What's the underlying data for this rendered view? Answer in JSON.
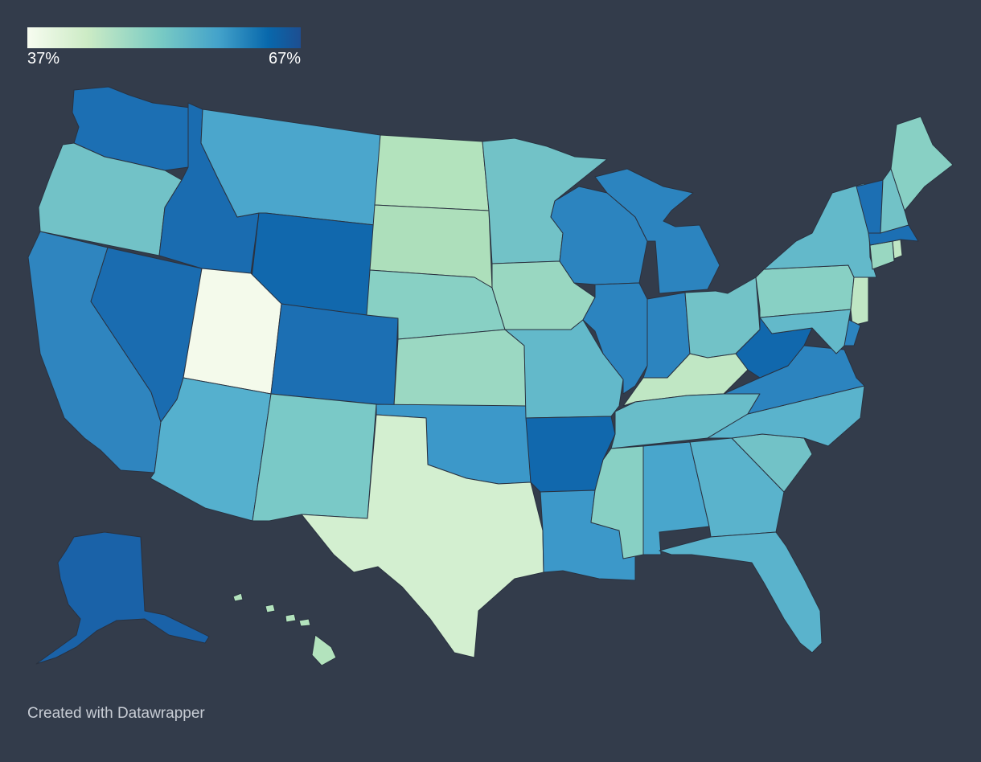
{
  "legend": {
    "min_label": "37%",
    "max_label": "67%",
    "min_value": 37,
    "max_value": 67,
    "colors": [
      "#f7fcf0",
      "#ccebc5",
      "#7bccc4",
      "#43a2ca",
      "#0868ac",
      "#1d4e91"
    ]
  },
  "credit": "Created with Datawrapper",
  "background_color": "#333c4b",
  "states": [
    {
      "id": "WA",
      "color": "#1c6fb3"
    },
    {
      "id": "OR",
      "color": "#72c2c7"
    },
    {
      "id": "CA",
      "color": "#2f85bf"
    },
    {
      "id": "NV",
      "color": "#1a6cb0"
    },
    {
      "id": "ID",
      "color": "#1a6cb0"
    },
    {
      "id": "MT",
      "color": "#4ba6cc"
    },
    {
      "id": "WY",
      "color": "#1168ad"
    },
    {
      "id": "UT",
      "color": "#f4faeb"
    },
    {
      "id": "CO",
      "color": "#1c6fb3"
    },
    {
      "id": "AZ",
      "color": "#55b0ce"
    },
    {
      "id": "NM",
      "color": "#7ac9c7"
    },
    {
      "id": "ND",
      "color": "#b3e3bd"
    },
    {
      "id": "SD",
      "color": "#addfbb"
    },
    {
      "id": "NE",
      "color": "#88d0c4"
    },
    {
      "id": "KS",
      "color": "#9bd8c2"
    },
    {
      "id": "OK",
      "color": "#3c98c9"
    },
    {
      "id": "TX",
      "color": "#d3efd0"
    },
    {
      "id": "MN",
      "color": "#72c2c7"
    },
    {
      "id": "IA",
      "color": "#99d7c1"
    },
    {
      "id": "MO",
      "color": "#63b9ca"
    },
    {
      "id": "AR",
      "color": "#1168ad"
    },
    {
      "id": "LA",
      "color": "#3c98c9"
    },
    {
      "id": "WI",
      "color": "#2c84bf"
    },
    {
      "id": "IL",
      "color": "#2c84bf"
    },
    {
      "id": "MI",
      "color": "#2c84bf"
    },
    {
      "id": "IN",
      "color": "#2c84bf"
    },
    {
      "id": "OH",
      "color": "#72c2c7"
    },
    {
      "id": "KY",
      "color": "#c0e7c4"
    },
    {
      "id": "TN",
      "color": "#69bdc9"
    },
    {
      "id": "MS",
      "color": "#88d0c4"
    },
    {
      "id": "AL",
      "color": "#49a6cc"
    },
    {
      "id": "GA",
      "color": "#5ab3cc"
    },
    {
      "id": "FL",
      "color": "#5ab3cc"
    },
    {
      "id": "SC",
      "color": "#72c2c7"
    },
    {
      "id": "NC",
      "color": "#5ab3cc"
    },
    {
      "id": "VA",
      "color": "#2c84bf"
    },
    {
      "id": "WV",
      "color": "#1168ad"
    },
    {
      "id": "PA",
      "color": "#88d0c4"
    },
    {
      "id": "NY",
      "color": "#63b9ca"
    },
    {
      "id": "VT",
      "color": "#1c6fb3"
    },
    {
      "id": "NH",
      "color": "#72c2c7"
    },
    {
      "id": "ME",
      "color": "#88d0c4"
    },
    {
      "id": "MA",
      "color": "#1c6fb3"
    },
    {
      "id": "CT",
      "color": "#99d7c1"
    },
    {
      "id": "RI",
      "color": "#c0e7c4"
    },
    {
      "id": "NJ",
      "color": "#c0e7c4"
    },
    {
      "id": "DE",
      "color": "#2c84bf"
    },
    {
      "id": "MD",
      "color": "#63b9ca"
    },
    {
      "id": "AK",
      "color": "#1a62a8"
    },
    {
      "id": "HI",
      "color": "#b3e3bd"
    }
  ]
}
